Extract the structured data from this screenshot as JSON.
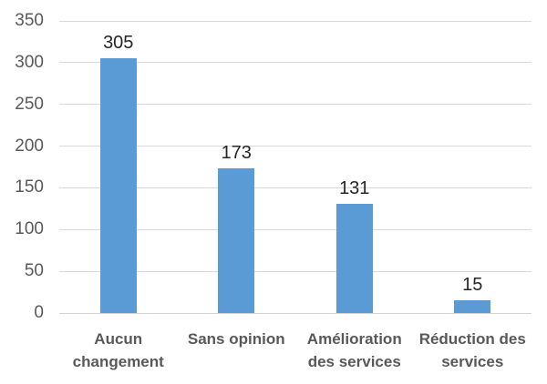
{
  "chart_data": {
    "type": "bar",
    "title": "",
    "xlabel": "",
    "ylabel": "",
    "categories": [
      "Aucun changement",
      "Sans opinion",
      "Amélioration des services",
      "Réduction des services"
    ],
    "category_lines": [
      [
        "Aucun",
        "changement"
      ],
      [
        "Sans opinion"
      ],
      [
        "Amélioration",
        "des services"
      ],
      [
        "Réduction des",
        "services"
      ]
    ],
    "values": [
      305,
      173,
      131,
      15
    ],
    "data_labels": [
      "305",
      "173",
      "131",
      "15"
    ],
    "ylim": [
      0,
      350
    ],
    "ytick_step": 50,
    "yticks": [
      0,
      50,
      100,
      150,
      200,
      250,
      300,
      350
    ],
    "grid": "horizontal",
    "legend_position": "none",
    "colors": {
      "bar": "#5B9BD5",
      "gridline": "#D9D9D9",
      "axis_line": "#D2D2D2",
      "y_tick_label": "#595959",
      "category_label": "#595959",
      "value_label": "#262626",
      "background": "#ffffff"
    }
  }
}
